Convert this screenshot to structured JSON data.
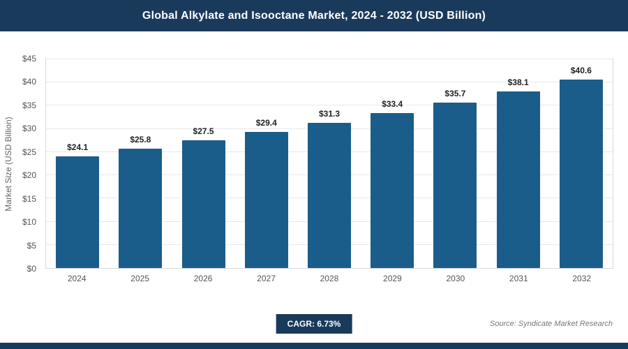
{
  "header": {
    "title": "Global Alkylate and Isooctane Market, 2024 - 2032 (USD Billion)"
  },
  "chart_data": {
    "type": "bar",
    "title": "Global Alkylate and Isooctane Market, 2024 - 2032 (USD Billion)",
    "categories": [
      "2024",
      "2025",
      "2026",
      "2027",
      "2028",
      "2029",
      "2030",
      "2031",
      "2032"
    ],
    "values": [
      24.1,
      25.8,
      27.5,
      29.4,
      31.3,
      33.4,
      35.7,
      38.1,
      40.6
    ],
    "value_labels": [
      "$24.1",
      "$25.8",
      "$27.5",
      "$29.4",
      "$31.3",
      "$33.4",
      "$35.7",
      "$38.1",
      "$40.6"
    ],
    "xlabel": "",
    "ylabel": "Market Size (USD Billion)",
    "ylim": [
      0,
      45
    ],
    "y_tick_step": 5,
    "y_tick_labels": [
      "$0",
      "$5",
      "$10",
      "$15",
      "$20",
      "$25",
      "$30",
      "$35",
      "$40",
      "$45"
    ],
    "grid": "horizontal",
    "legend": "none",
    "bar_color": "#1b5d8a"
  },
  "footer": {
    "cagr_label": "CAGR: 6.73%",
    "source": "Source: Syndicate Market Research"
  },
  "colors": {
    "navy": "#1a3a5c",
    "bar": "#1b5d8a",
    "gridline": "#e8e8e8"
  }
}
